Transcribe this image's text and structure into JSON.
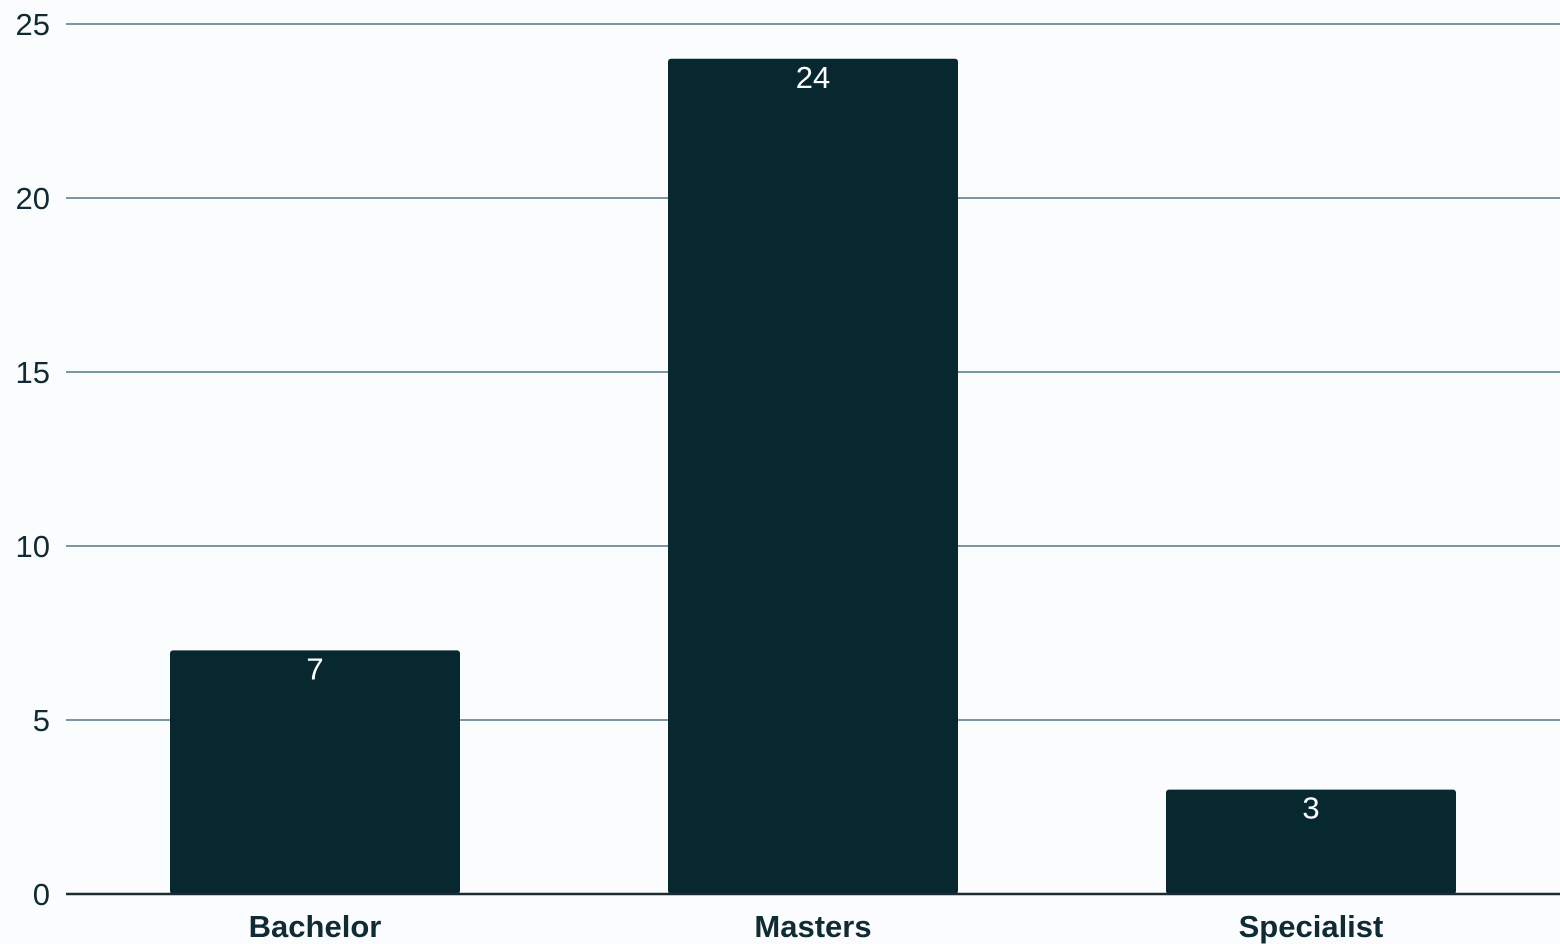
{
  "chart_data": {
    "type": "bar",
    "title": "",
    "xlabel": "",
    "ylabel": "",
    "categories": [
      "Bachelor",
      "Masters",
      "Specialist"
    ],
    "values": [
      7,
      24,
      3
    ],
    "data_labels": [
      "7",
      "24",
      "3"
    ],
    "ylim": [
      0,
      25
    ],
    "yticks": [
      0,
      5,
      10,
      15,
      20,
      25
    ],
    "ytick_labels": [
      "0",
      "5",
      "10",
      "15",
      "20",
      "25"
    ],
    "grid": true,
    "legend": "none",
    "colors": {
      "bar": "#082830",
      "grid": "#7c97a0",
      "axis": "#1c2b30",
      "text": "#102b33",
      "data_label": "#ffffff",
      "background": "#fbfcfd"
    }
  }
}
